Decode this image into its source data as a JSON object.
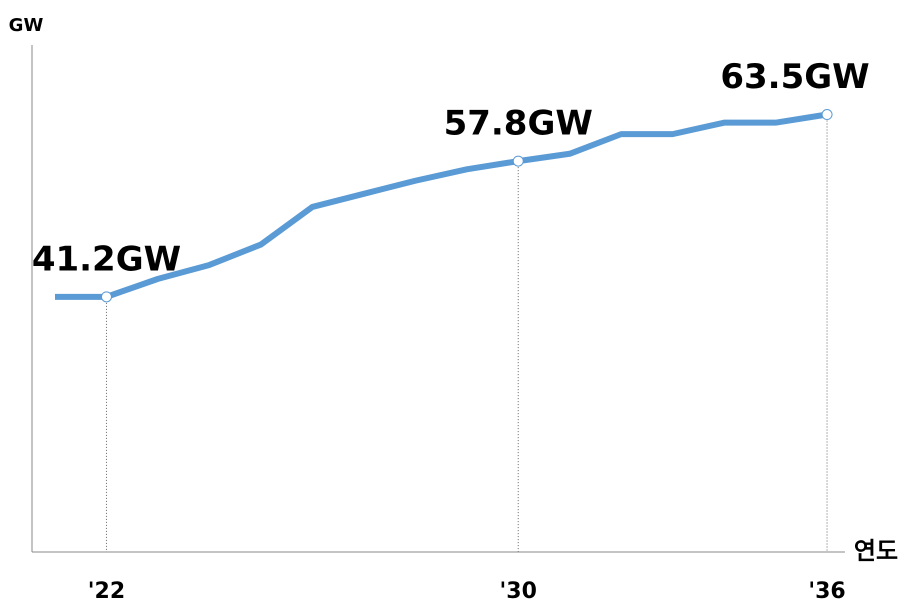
{
  "chart_data": {
    "type": "line",
    "y_label": "GW",
    "x_label": "연도",
    "categories": [
      null,
      "'22",
      null,
      null,
      null,
      null,
      null,
      null,
      null,
      "'30",
      null,
      null,
      null,
      null,
      null,
      "'36"
    ],
    "series": [
      {
        "color": "#5b9bd5",
        "values": [
          41.2,
          41.2,
          43.4,
          45.1,
          47.6,
          52.2,
          53.8,
          55.4,
          56.8,
          57.8,
          58.7,
          61.1,
          61.1,
          62.5,
          62.5,
          63.5
        ],
        "value_labels": [
          null,
          "41.2GW",
          null,
          null,
          null,
          null,
          null,
          null,
          null,
          "57.8GW",
          null,
          null,
          null,
          null,
          null,
          "63.5GW"
        ]
      }
    ],
    "ylim": [
      10,
      72
    ]
  }
}
